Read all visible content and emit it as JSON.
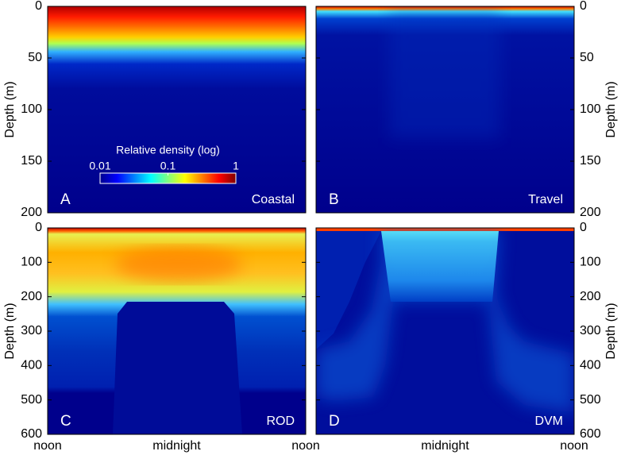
{
  "chart_data": [
    {
      "type": "heatmap",
      "label": "A",
      "annotation": "Coastal",
      "ylabel": "Depth (m)",
      "ylim": [
        0,
        200
      ],
      "yticks": [
        0,
        50,
        100,
        150,
        200
      ],
      "colorbar": {
        "title": "Relative density (log)",
        "lim": [
          0.01,
          1
        ],
        "ticks": [
          0.01,
          0.1,
          1
        ],
        "log": true
      }
    },
    {
      "type": "heatmap",
      "label": "B",
      "annotation": "Travel",
      "ylabel": "Depth (m)",
      "ylim": [
        0,
        200
      ],
      "yticks": [
        0,
        50,
        100,
        150,
        200
      ]
    },
    {
      "type": "heatmap",
      "label": "C",
      "annotation": "ROD",
      "ylabel": "Depth (m)",
      "ylim": [
        0,
        600
      ],
      "yticks": [
        0,
        100,
        200,
        300,
        400,
        500,
        600
      ],
      "categories": [
        "noon",
        "midnight",
        "noon"
      ]
    },
    {
      "type": "heatmap",
      "label": "D",
      "annotation": "DVM",
      "ylabel": "Depth (m)",
      "ylim": [
        0,
        600
      ],
      "yticks": [
        0,
        100,
        200,
        300,
        400,
        500,
        600
      ],
      "categories": [
        null,
        "midnight",
        "noon"
      ]
    }
  ]
}
